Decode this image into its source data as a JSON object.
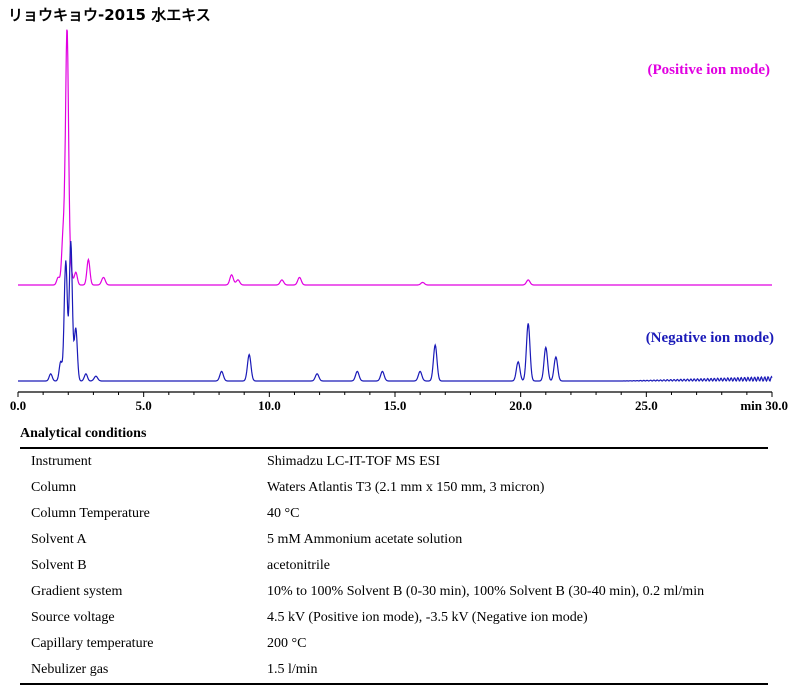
{
  "title": "リョウキョウ-2015 水エキス",
  "chart_data": {
    "type": "line",
    "xlabel": "min",
    "xlim": [
      0,
      30
    ],
    "x_ticks": [
      "0.0",
      "5.0",
      "10.0",
      "15.0",
      "20.0",
      "25.0",
      "30.0"
    ],
    "series": [
      {
        "name": "(Positive ion mode)",
        "color": "#e100e1",
        "peaks": [
          [
            1.6,
            3
          ],
          [
            1.8,
            20
          ],
          [
            1.95,
            100
          ],
          [
            2.1,
            6
          ],
          [
            2.3,
            5
          ],
          [
            2.8,
            10
          ],
          [
            3.4,
            3
          ],
          [
            8.5,
            4
          ],
          [
            8.75,
            2
          ],
          [
            10.5,
            2
          ],
          [
            11.2,
            3
          ],
          [
            16.1,
            1
          ],
          [
            20.3,
            2
          ]
        ]
      },
      {
        "name": "(Negative ion mode)",
        "color": "#1a1ab8",
        "peaks": [
          [
            1.3,
            3
          ],
          [
            1.7,
            8
          ],
          [
            1.9,
            50
          ],
          [
            2.1,
            58
          ],
          [
            2.3,
            22
          ],
          [
            2.7,
            3
          ],
          [
            3.1,
            2
          ],
          [
            8.1,
            4
          ],
          [
            9.2,
            11
          ],
          [
            11.9,
            3
          ],
          [
            13.5,
            4
          ],
          [
            14.5,
            4
          ],
          [
            16.0,
            4
          ],
          [
            16.6,
            15
          ],
          [
            19.9,
            8
          ],
          [
            20.3,
            24
          ],
          [
            21.0,
            14
          ],
          [
            21.4,
            10
          ]
        ]
      }
    ]
  },
  "conditions": {
    "heading": "Analytical conditions",
    "rows": [
      [
        "Instrument",
        "Shimadzu LC-IT-TOF MS ESI"
      ],
      [
        "Column",
        "Waters Atlantis T3 (2.1 mm x 150 mm, 3 micron)"
      ],
      [
        "Column Temperature",
        "40 °C"
      ],
      [
        "Solvent A",
        "5 mM Ammonium acetate solution"
      ],
      [
        "Solvent B",
        "acetonitrile"
      ],
      [
        "Gradient system",
        "10% to 100% Solvent B (0-30 min), 100% Solvent B (30-40 min), 0.2 ml/min"
      ],
      [
        "Source voltage",
        "4.5 kV (Positive ion mode), -3.5 kV (Negative ion mode)"
      ],
      [
        "Capillary temperature",
        "200 °C"
      ],
      [
        "Nebulizer gas",
        "1.5 l/min"
      ]
    ]
  }
}
